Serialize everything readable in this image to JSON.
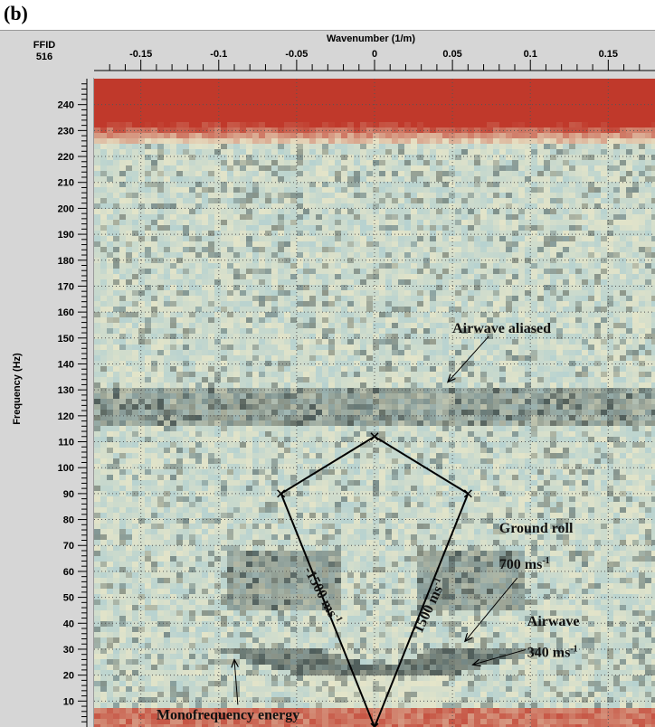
{
  "panel_label": "(b)",
  "ffid": {
    "label": "FFID",
    "value": "516"
  },
  "chart_data": {
    "type": "heatmap",
    "xlabel": "Wavenumber (1/m)",
    "ylabel": "Frequency (Hz)",
    "xlim": [
      -0.18,
      0.18
    ],
    "ylim": [
      0,
      250
    ],
    "x_ticks": [
      -0.15,
      -0.1,
      -0.05,
      0,
      0.05,
      0.1,
      0.15
    ],
    "x_tick_labels": [
      "-0.15",
      "-0.1",
      "-0.05",
      "0",
      "0.05",
      "0.1",
      "0.15"
    ],
    "y_ticks": [
      10,
      20,
      30,
      40,
      50,
      60,
      70,
      80,
      90,
      100,
      110,
      120,
      130,
      140,
      150,
      160,
      170,
      180,
      190,
      200,
      210,
      220,
      230,
      240
    ],
    "grid": true,
    "colormap": {
      "high": "#c0392b",
      "mid": "#e8e6c8",
      "low": "#b7d2d0",
      "dark": "#3d4a48"
    },
    "fan_polygon": [
      [
        0,
        0
      ],
      [
        -0.06,
        90
      ],
      [
        0,
        112
      ],
      [
        0.06,
        90
      ],
      [
        0,
        0
      ]
    ],
    "annotations": [
      {
        "text": "Airwave aliased",
        "at": [
          0.05,
          152
        ],
        "arrow_to": [
          0.047,
          133
        ]
      },
      {
        "text": "Ground roll",
        "at": [
          0.08,
          75
        ]
      },
      {
        "text": "700 ms",
        "sup": "-1",
        "at": [
          0.08,
          61
        ],
        "arrow_to": [
          0.058,
          33
        ]
      },
      {
        "text": "Airwave",
        "at": [
          0.098,
          39
        ]
      },
      {
        "text": "340 ms",
        "sup": "-1",
        "at": [
          0.098,
          27
        ],
        "arrow_to": [
          0.063,
          24
        ]
      },
      {
        "text": "Monofrequency energy",
        "at": [
          -0.14,
          3
        ],
        "arrow_to": [
          -0.09,
          26
        ]
      },
      {
        "text": "-1500 ms",
        "sup": "-1",
        "rotated": true,
        "at": [
          -0.036,
          50
        ]
      },
      {
        "text": "1500 ms",
        "sup": "-1",
        "rotated": true,
        "at": [
          0.038,
          46
        ]
      }
    ]
  }
}
